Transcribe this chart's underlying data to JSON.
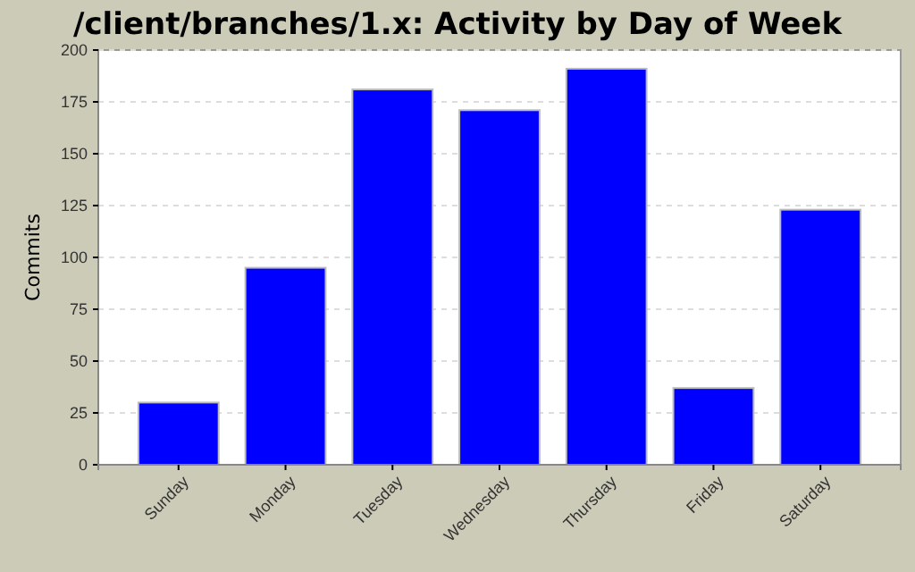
{
  "chart_data": {
    "type": "bar",
    "title": "/client/branches/1.x: Activity by Day of Week",
    "ylabel": "Commits",
    "categories": [
      "Sunday",
      "Monday",
      "Tuesday",
      "Wednesday",
      "Thursday",
      "Friday",
      "Saturday"
    ],
    "values": [
      30,
      95,
      181,
      171,
      191,
      37,
      123
    ],
    "color": "#0000ff",
    "ylim": [
      0,
      200
    ],
    "yticks": [
      0,
      25,
      50,
      75,
      100,
      125,
      150,
      175,
      200
    ],
    "grid": "y"
  }
}
